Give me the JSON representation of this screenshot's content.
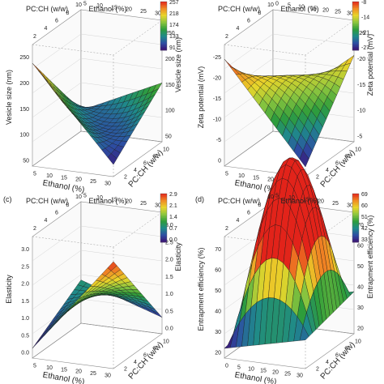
{
  "palette": [
    "#3b0f70",
    "#2d4ea3",
    "#1f8a8a",
    "#2e9d3a",
    "#8cc63f",
    "#e8d52a",
    "#f08a24",
    "#e2231a"
  ],
  "chart_data": [
    {
      "panel": "",
      "type": "surface3d",
      "zlabel": "Vesicle size (nm)",
      "xlabel": "Ethanol (%)",
      "ylabel": "PC:CH (w/w)",
      "top_xlabel": "Ethanol (%)",
      "top_ylabel": "PC:CH (w/w)",
      "z_ticks": [
        "50",
        "100",
        "150",
        "200",
        "250"
      ],
      "z_right_ticks": [
        "50",
        "100",
        "150",
        "200",
        "250"
      ],
      "x_ticks": [
        "5",
        "10",
        "15",
        "20",
        "25",
        "30"
      ],
      "y_ticks": [
        "2",
        "4",
        "6",
        "8",
        "10"
      ],
      "top_x_ticks": [
        "5",
        "10",
        "15",
        "20",
        "25",
        "30"
      ],
      "top_y_ticks": [
        "2",
        "4",
        "6",
        "8",
        "10"
      ],
      "colorbar_ticks": [
        "257",
        "218",
        "174",
        "133",
        "91"
      ],
      "colorbar_range": [
        91,
        257
      ],
      "surface": {
        "corners": [
          250,
          95,
          175,
          110
        ],
        "curvature": -35
      }
    },
    {
      "panel": "",
      "type": "surface3d",
      "zlabel": "Zeta potential (mV)",
      "xlabel": "Ethanol (%)",
      "ylabel": "PC:CH (w/w)",
      "top_xlabel": "Ethanol (%)",
      "top_ylabel": "PC:CH (w/w)",
      "z_ticks": [
        "0",
        "-5",
        "-10",
        "-15",
        "-20",
        "-25"
      ],
      "z_right_ticks": [
        "-5",
        "-10",
        "-15",
        "-20",
        "-25"
      ],
      "x_ticks": [
        "5",
        "10",
        "15",
        "20",
        "25",
        "30"
      ],
      "y_ticks": [
        "2",
        "4",
        "6",
        "8",
        "10"
      ],
      "top_x_ticks": [
        "0",
        "5",
        "10",
        "15",
        "20",
        "25",
        "30"
      ],
      "top_y_ticks": [
        "2",
        "4",
        "6",
        "8",
        "10"
      ],
      "colorbar_ticks": [
        "-8",
        "-14",
        "-21",
        "-27"
      ],
      "colorbar_range": [
        -27,
        -8
      ],
      "surface": {
        "corners": [
          -8,
          -27,
          -12,
          -25
        ],
        "curvature": 4
      }
    },
    {
      "panel": "(c)",
      "type": "surface3d",
      "zlabel": "Elasticity",
      "xlabel": "Ethanol (%)",
      "ylabel": "PC:CH (w/w)",
      "top_xlabel": "Ethanol (%)",
      "top_ylabel": "PC:CH (w/w)",
      "z_ticks": [
        "0.0",
        "0.5",
        "1.0",
        "1.5",
        "2.0",
        "2.5",
        "3.0"
      ],
      "z_right_ticks": [
        "0.0",
        "0.5",
        "1.0",
        "1.5",
        "2.0",
        "2.5",
        "3.0"
      ],
      "x_ticks": [
        "5",
        "10",
        "15",
        "20",
        "25",
        "30"
      ],
      "y_ticks": [
        "2",
        "4",
        "6",
        "8",
        "10"
      ],
      "top_x_ticks": [
        "5",
        "10",
        "15",
        "20",
        "25",
        "30"
      ],
      "top_y_ticks": [
        "2",
        "4",
        "6",
        "8",
        "10"
      ],
      "colorbar_ticks": [
        "2.9",
        "2.1",
        "1.4",
        "0.7",
        "0.0"
      ],
      "colorbar_range": [
        0.0,
        2.9
      ],
      "surface": {
        "corners": [
          0.0,
          2.9,
          0.2,
          1.0
        ],
        "curvature": 0.2
      }
    },
    {
      "panel": "(d)",
      "type": "surface3d",
      "zlabel": "Entrapment efficiency (%)",
      "xlabel": "Ethanol (%)",
      "ylabel": "PC:CH (w/w)",
      "top_xlabel": "Ethanol (%)",
      "top_ylabel": "PC:CH (w/w)",
      "z_ticks": [
        "20",
        "30",
        "40",
        "50",
        "60",
        "70"
      ],
      "z_right_ticks": [
        "20",
        "30",
        "40",
        "50",
        "60",
        "70"
      ],
      "x_ticks": [
        "0",
        "5",
        "10",
        "15",
        "20",
        "25",
        "30"
      ],
      "y_ticks": [
        "2",
        "4",
        "6",
        "8",
        "10"
      ],
      "top_x_ticks": [
        "5",
        "10",
        "15",
        "20",
        "25",
        "30"
      ],
      "top_y_ticks": [
        "2",
        "4",
        "6",
        "8",
        "10"
      ],
      "colorbar_ticks": [
        "69",
        "60",
        "51",
        "42",
        "33"
      ],
      "colorbar_range": [
        33,
        69
      ],
      "surface": {
        "corners": [
          33,
          40,
          45,
          38
        ],
        "curvature": 60
      }
    }
  ]
}
